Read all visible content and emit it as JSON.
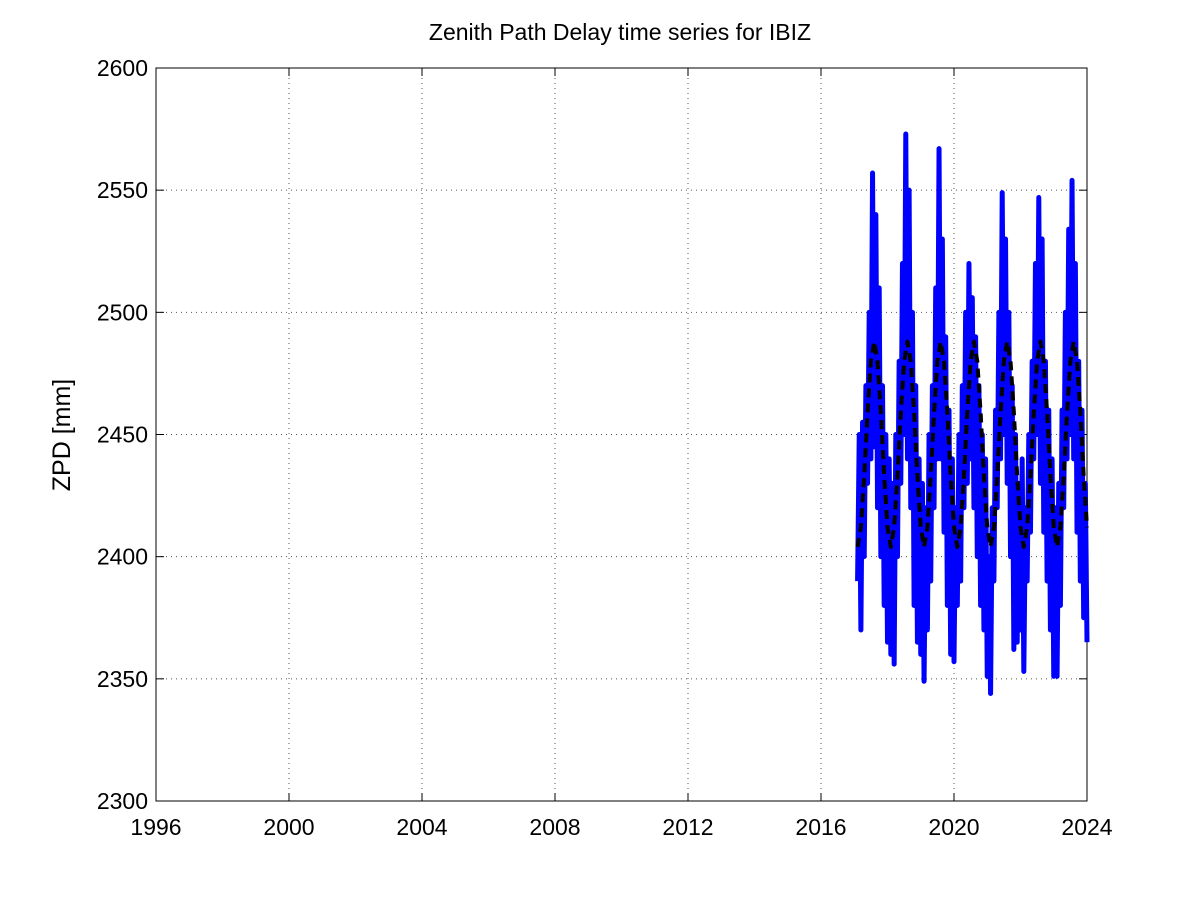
{
  "chart_data": {
    "type": "line",
    "title": "Zenith Path Delay time series for IBIZ",
    "y_label": "ZPD [mm]",
    "xlim": [
      1996,
      2024
    ],
    "xticks": [
      1996,
      2000,
      2004,
      2008,
      2012,
      2016,
      2020,
      2024
    ],
    "ylim": [
      2300,
      2600
    ],
    "yticks": [
      2300,
      2350,
      2400,
      2450,
      2500,
      2550,
      2600
    ],
    "grid": true,
    "series": [
      {
        "color": "#0000ff",
        "dash": "solid",
        "x": [
          2017.1,
          2017.15,
          2017.2,
          2017.25,
          2017.3,
          2017.35,
          2017.4,
          2017.45,
          2017.5,
          2017.55,
          2017.6,
          2017.65,
          2017.7,
          2017.75,
          2017.8,
          2017.85,
          2017.9,
          2017.95,
          2018.0,
          2018.05,
          2018.1,
          2018.15,
          2018.2,
          2018.25,
          2018.3,
          2018.35,
          2018.4,
          2018.45,
          2018.5,
          2018.55,
          2018.6,
          2018.65,
          2018.7,
          2018.75,
          2018.8,
          2018.85,
          2018.9,
          2018.95,
          2019.0,
          2019.05,
          2019.1,
          2019.15,
          2019.2,
          2019.25,
          2019.3,
          2019.35,
          2019.4,
          2019.45,
          2019.5,
          2019.55,
          2019.6,
          2019.65,
          2019.7,
          2019.75,
          2019.8,
          2019.85,
          2019.9,
          2019.95,
          2020.0,
          2020.05,
          2020.1,
          2020.15,
          2020.2,
          2020.25,
          2020.3,
          2020.35,
          2020.4,
          2020.45,
          2020.5,
          2020.55,
          2020.6,
          2020.65,
          2020.7,
          2020.75,
          2020.8,
          2020.85,
          2020.9,
          2020.95,
          2021.0,
          2021.05,
          2021.1,
          2021.15,
          2021.2,
          2021.25,
          2021.3,
          2021.35,
          2021.4,
          2021.45,
          2021.5,
          2021.55,
          2021.6,
          2021.65,
          2021.7,
          2021.75,
          2021.8,
          2021.85,
          2021.9,
          2021.95,
          2022.0,
          2022.05,
          2022.1,
          2022.15,
          2022.2,
          2022.25,
          2022.3,
          2022.35,
          2022.4,
          2022.45,
          2022.5,
          2022.55,
          2022.6,
          2022.65,
          2022.7,
          2022.75,
          2022.8,
          2022.85,
          2022.9,
          2022.95,
          2023.0,
          2023.05,
          2023.1,
          2023.15,
          2023.2,
          2023.25,
          2023.3,
          2023.35,
          2023.4,
          2023.45,
          2023.5,
          2023.55,
          2023.6,
          2023.65,
          2023.7,
          2023.75,
          2023.8,
          2023.85,
          2023.9,
          2023.95,
          2024.0
        ],
        "values": [
          2390,
          2450,
          2370,
          2455,
          2400,
          2470,
          2430,
          2500,
          2440,
          2557,
          2445,
          2540,
          2420,
          2510,
          2400,
          2470,
          2380,
          2450,
          2365,
          2440,
          2360,
          2430,
          2356,
          2450,
          2400,
          2480,
          2430,
          2520,
          2450,
          2573,
          2440,
          2550,
          2420,
          2500,
          2380,
          2470,
          2365,
          2440,
          2360,
          2430,
          2349,
          2420,
          2370,
          2450,
          2390,
          2470,
          2420,
          2510,
          2440,
          2567,
          2440,
          2530,
          2410,
          2490,
          2380,
          2460,
          2360,
          2440,
          2357,
          2420,
          2380,
          2450,
          2390,
          2470,
          2420,
          2500,
          2430,
          2520,
          2440,
          2506,
          2420,
          2490,
          2400,
          2470,
          2380,
          2450,
          2370,
          2440,
          2351,
          2400,
          2344,
          2420,
          2390,
          2460,
          2420,
          2500,
          2440,
          2549,
          2450,
          2530,
          2430,
          2500,
          2400,
          2470,
          2362,
          2450,
          2365,
          2430,
          2370,
          2440,
          2353,
          2420,
          2390,
          2450,
          2410,
          2480,
          2440,
          2520,
          2450,
          2547,
          2430,
          2530,
          2410,
          2480,
          2390,
          2460,
          2370,
          2440,
          2351,
          2420,
          2351,
          2430,
          2380,
          2460,
          2420,
          2500,
          2440,
          2534,
          2450,
          2554,
          2440,
          2520,
          2410,
          2480,
          2390,
          2460,
          2375,
          2430,
          2365
        ]
      },
      {
        "color": "#000000",
        "dash": "dashed",
        "x": [
          2017.1,
          2017.2,
          2017.3,
          2017.4,
          2017.5,
          2017.6,
          2017.7,
          2017.8,
          2017.9,
          2018.0,
          2018.1,
          2018.2,
          2018.3,
          2018.4,
          2018.5,
          2018.6,
          2018.7,
          2018.8,
          2018.9,
          2019.0,
          2019.1,
          2019.2,
          2019.3,
          2019.4,
          2019.5,
          2019.6,
          2019.7,
          2019.8,
          2019.9,
          2020.0,
          2020.1,
          2020.2,
          2020.3,
          2020.4,
          2020.5,
          2020.6,
          2020.7,
          2020.8,
          2020.9,
          2021.0,
          2021.1,
          2021.2,
          2021.3,
          2021.4,
          2021.5,
          2021.6,
          2021.7,
          2021.8,
          2021.9,
          2022.0,
          2022.1,
          2022.2,
          2022.3,
          2022.4,
          2022.5,
          2022.6,
          2022.7,
          2022.8,
          2022.9,
          2023.0,
          2023.1,
          2023.2,
          2023.3,
          2023.4,
          2023.5,
          2023.6,
          2023.7,
          2023.8,
          2023.9,
          2024.0
        ],
        "values": [
          2404,
          2412,
          2433,
          2459,
          2480,
          2488,
          2480,
          2459,
          2433,
          2412,
          2404,
          2412,
          2433,
          2459,
          2480,
          2488,
          2480,
          2459,
          2433,
          2412,
          2404,
          2412,
          2433,
          2459,
          2480,
          2488,
          2480,
          2459,
          2433,
          2412,
          2404,
          2412,
          2433,
          2459,
          2480,
          2488,
          2480,
          2459,
          2433,
          2412,
          2404,
          2412,
          2433,
          2459,
          2480,
          2488,
          2480,
          2459,
          2433,
          2412,
          2404,
          2412,
          2433,
          2459,
          2480,
          2488,
          2480,
          2459,
          2433,
          2412,
          2404,
          2412,
          2433,
          2459,
          2480,
          2488,
          2480,
          2459,
          2433,
          2412
        ]
      }
    ]
  }
}
